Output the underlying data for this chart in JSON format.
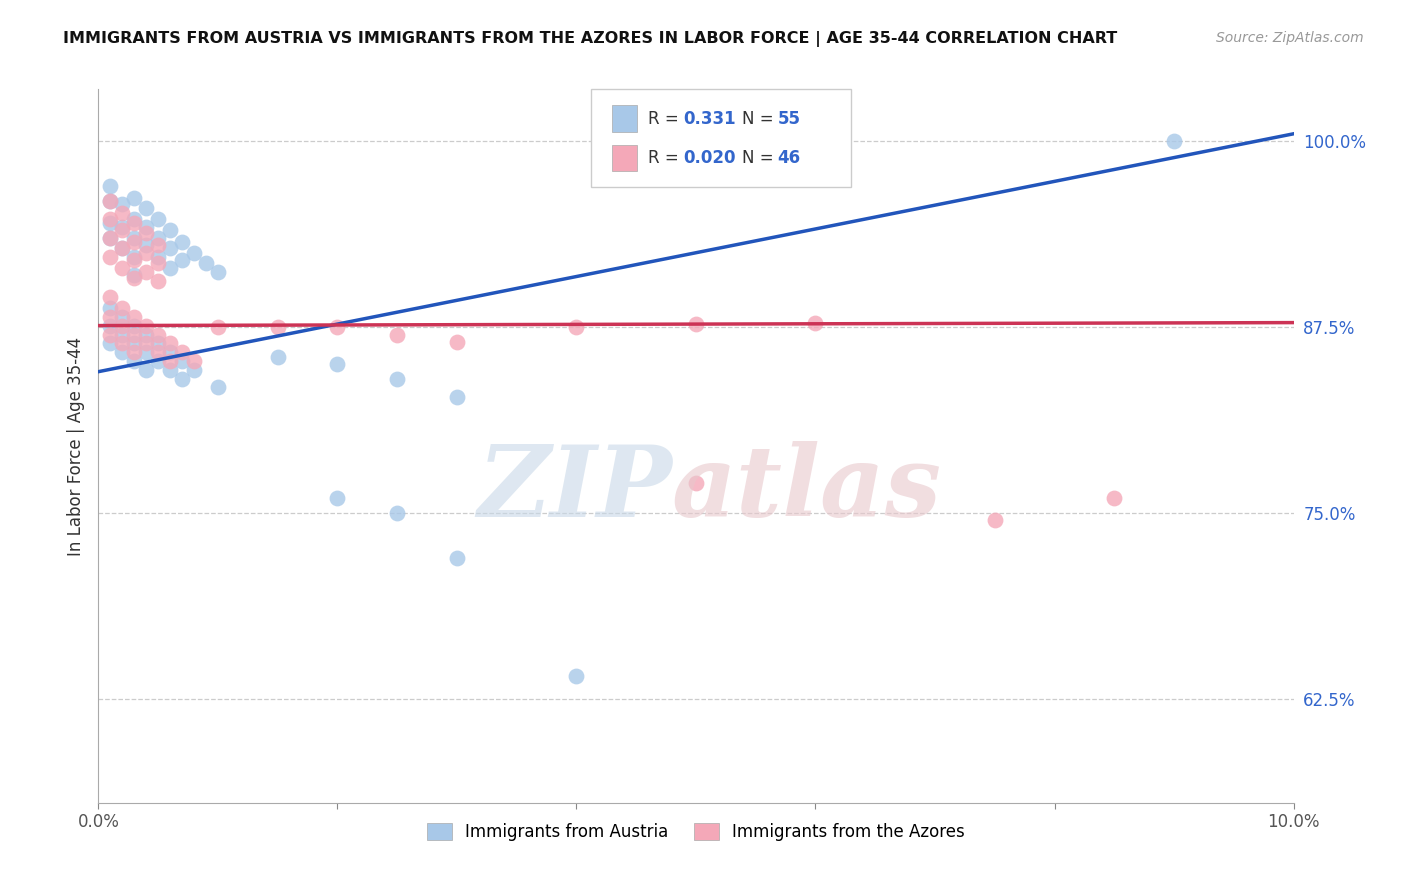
{
  "title": "IMMIGRANTS FROM AUSTRIA VS IMMIGRANTS FROM THE AZORES IN LABOR FORCE | AGE 35-44 CORRELATION CHART",
  "source": "Source: ZipAtlas.com",
  "ylabel": "In Labor Force | Age 35-44",
  "xlim": [
    0.0,
    0.1
  ],
  "ylim": [
    0.555,
    1.035
  ],
  "yticks": [
    0.625,
    0.75,
    0.875,
    1.0
  ],
  "yticklabels": [
    "62.5%",
    "75.0%",
    "87.5%",
    "100.0%"
  ],
  "xticks": [
    0.0,
    0.02,
    0.04,
    0.06,
    0.08,
    0.1
  ],
  "xticklabels": [
    "0.0%",
    "",
    "",
    "",
    "",
    "10.0%"
  ],
  "austria_color": "#a8c8e8",
  "azores_color": "#f4a8b8",
  "austria_line_color": "#2255bb",
  "azores_line_color": "#cc3355",
  "austria_line": [
    [
      0.0,
      0.845
    ],
    [
      0.1,
      1.005
    ]
  ],
  "azores_line": [
    [
      0.0,
      0.876
    ],
    [
      0.1,
      0.878
    ]
  ],
  "austria_points": [
    [
      0.001,
      0.97
    ],
    [
      0.001,
      0.96
    ],
    [
      0.001,
      0.945
    ],
    [
      0.001,
      0.935
    ],
    [
      0.002,
      0.958
    ],
    [
      0.002,
      0.942
    ],
    [
      0.002,
      0.928
    ],
    [
      0.003,
      0.962
    ],
    [
      0.003,
      0.948
    ],
    [
      0.003,
      0.935
    ],
    [
      0.003,
      0.922
    ],
    [
      0.003,
      0.91
    ],
    [
      0.004,
      0.955
    ],
    [
      0.004,
      0.942
    ],
    [
      0.004,
      0.93
    ],
    [
      0.005,
      0.948
    ],
    [
      0.005,
      0.935
    ],
    [
      0.005,
      0.922
    ],
    [
      0.006,
      0.94
    ],
    [
      0.006,
      0.928
    ],
    [
      0.006,
      0.915
    ],
    [
      0.007,
      0.932
    ],
    [
      0.007,
      0.92
    ],
    [
      0.008,
      0.925
    ],
    [
      0.009,
      0.918
    ],
    [
      0.01,
      0.912
    ],
    [
      0.001,
      0.888
    ],
    [
      0.001,
      0.876
    ],
    [
      0.001,
      0.864
    ],
    [
      0.002,
      0.882
    ],
    [
      0.002,
      0.87
    ],
    [
      0.002,
      0.858
    ],
    [
      0.003,
      0.876
    ],
    [
      0.003,
      0.864
    ],
    [
      0.003,
      0.852
    ],
    [
      0.004,
      0.87
    ],
    [
      0.004,
      0.858
    ],
    [
      0.004,
      0.846
    ],
    [
      0.005,
      0.864
    ],
    [
      0.005,
      0.852
    ],
    [
      0.006,
      0.858
    ],
    [
      0.006,
      0.846
    ],
    [
      0.007,
      0.852
    ],
    [
      0.007,
      0.84
    ],
    [
      0.008,
      0.846
    ],
    [
      0.01,
      0.835
    ],
    [
      0.015,
      0.855
    ],
    [
      0.02,
      0.85
    ],
    [
      0.025,
      0.84
    ],
    [
      0.03,
      0.828
    ],
    [
      0.02,
      0.76
    ],
    [
      0.025,
      0.75
    ],
    [
      0.03,
      0.72
    ],
    [
      0.04,
      0.64
    ],
    [
      0.09,
      1.0
    ]
  ],
  "azores_points": [
    [
      0.001,
      0.96
    ],
    [
      0.001,
      0.948
    ],
    [
      0.001,
      0.935
    ],
    [
      0.001,
      0.922
    ],
    [
      0.002,
      0.952
    ],
    [
      0.002,
      0.94
    ],
    [
      0.002,
      0.928
    ],
    [
      0.002,
      0.915
    ],
    [
      0.003,
      0.945
    ],
    [
      0.003,
      0.932
    ],
    [
      0.003,
      0.92
    ],
    [
      0.003,
      0.908
    ],
    [
      0.004,
      0.938
    ],
    [
      0.004,
      0.925
    ],
    [
      0.004,
      0.912
    ],
    [
      0.005,
      0.93
    ],
    [
      0.005,
      0.918
    ],
    [
      0.005,
      0.906
    ],
    [
      0.001,
      0.895
    ],
    [
      0.001,
      0.882
    ],
    [
      0.001,
      0.87
    ],
    [
      0.002,
      0.888
    ],
    [
      0.002,
      0.876
    ],
    [
      0.002,
      0.864
    ],
    [
      0.003,
      0.882
    ],
    [
      0.003,
      0.87
    ],
    [
      0.003,
      0.858
    ],
    [
      0.004,
      0.876
    ],
    [
      0.004,
      0.864
    ],
    [
      0.005,
      0.87
    ],
    [
      0.005,
      0.858
    ],
    [
      0.006,
      0.864
    ],
    [
      0.006,
      0.852
    ],
    [
      0.007,
      0.858
    ],
    [
      0.008,
      0.852
    ],
    [
      0.01,
      0.875
    ],
    [
      0.015,
      0.875
    ],
    [
      0.02,
      0.875
    ],
    [
      0.025,
      0.87
    ],
    [
      0.03,
      0.865
    ],
    [
      0.04,
      0.875
    ],
    [
      0.05,
      0.877
    ],
    [
      0.06,
      0.878
    ],
    [
      0.05,
      0.77
    ],
    [
      0.075,
      0.745
    ],
    [
      0.085,
      0.76
    ]
  ],
  "watermark_zip_color": "#c8d8e8",
  "watermark_atlas_color": "#e8c8cc"
}
